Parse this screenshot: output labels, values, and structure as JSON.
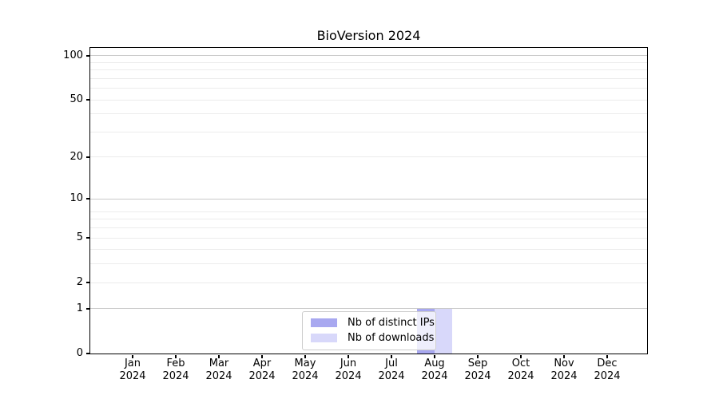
{
  "figure": {
    "background": "#ffffff"
  },
  "chart_data": {
    "type": "bar",
    "title": "BioVersion 2024",
    "categories": [
      "Jan",
      "Feb",
      "Mar",
      "Apr",
      "May",
      "Jun",
      "Jul",
      "Aug",
      "Sep",
      "Oct",
      "Nov",
      "Dec"
    ],
    "category_year": "2024",
    "series": [
      {
        "name": "Nb of distinct IPs",
        "color": "#a8a8f0",
        "values": [
          0,
          0,
          0,
          0,
          0,
          0,
          0,
          1,
          0,
          0,
          0,
          0
        ]
      },
      {
        "name": "Nb of downloads",
        "color": "#d8d8fa",
        "values": [
          0,
          0,
          0,
          0,
          0,
          0,
          0,
          1,
          0,
          0,
          0,
          0
        ]
      }
    ],
    "xlabel": "",
    "ylabel": "",
    "y_ticks": [
      0,
      1,
      2,
      5,
      10,
      20,
      50,
      100
    ],
    "y_scale": "log1p",
    "ylim": [
      0,
      113
    ],
    "grid": {
      "major_at": [
        1,
        10,
        100
      ],
      "minor_at": [
        2,
        3,
        4,
        5,
        6,
        7,
        8,
        20,
        30,
        40,
        50,
        60,
        70,
        80,
        90
      ],
      "major_color": "#c9c9c9",
      "minor_color": "#ececec"
    },
    "legend": {
      "position": "lower-center-inside",
      "entries": [
        "Nb of distinct IPs",
        "Nb of downloads"
      ]
    }
  }
}
